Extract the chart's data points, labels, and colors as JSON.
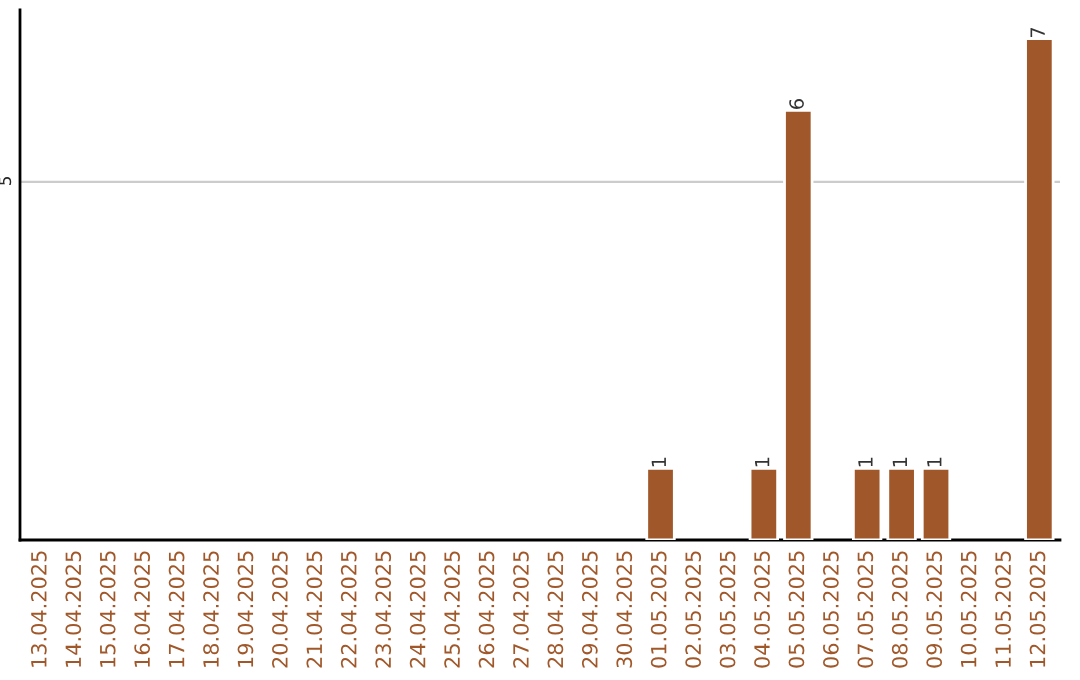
{
  "chart_data": {
    "type": "bar",
    "categories": [
      "13.04.2025",
      "14.04.2025",
      "15.04.2025",
      "16.04.2025",
      "17.04.2025",
      "18.04.2025",
      "19.04.2025",
      "20.04.2025",
      "21.04.2025",
      "22.04.2025",
      "23.04.2025",
      "24.04.2025",
      "25.04.2025",
      "26.04.2025",
      "27.04.2025",
      "28.04.2025",
      "29.04.2025",
      "30.04.2025",
      "01.05.2025",
      "02.05.2025",
      "03.05.2025",
      "04.05.2025",
      "05.05.2025",
      "06.05.2025",
      "07.05.2025",
      "08.05.2025",
      "09.05.2025",
      "10.05.2025",
      "11.05.2025",
      "12.05.2025"
    ],
    "values": [
      null,
      null,
      null,
      null,
      null,
      null,
      null,
      null,
      null,
      null,
      null,
      null,
      null,
      null,
      null,
      null,
      null,
      null,
      1,
      null,
      null,
      1,
      6,
      null,
      1,
      1,
      1,
      null,
      null,
      7
    ],
    "color": "#a0582a",
    "ylim": [
      0,
      7.4
    ],
    "yticks": [
      5
    ],
    "grid": "y",
    "data_labels": true
  }
}
